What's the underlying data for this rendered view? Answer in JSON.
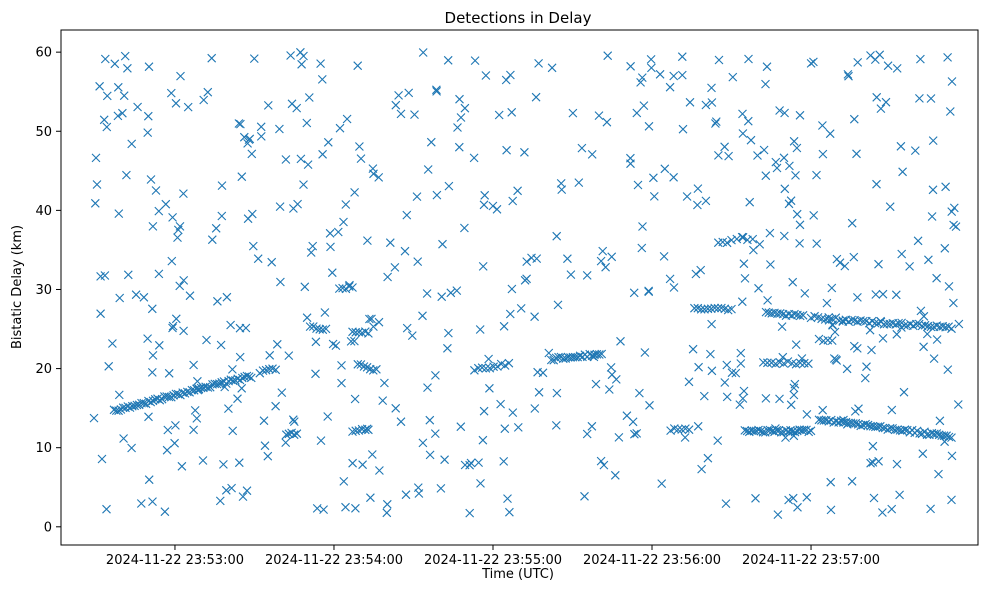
{
  "chart_data": {
    "type": "scatter",
    "title": "Detections in Delay",
    "xlabel": "Time (UTC)",
    "ylabel": "Bistatic Delay (km)",
    "marker": "x",
    "color": "#1f77b4",
    "x_unit": "seconds since 2024-11-22 23:52:00",
    "xlim": [
      17,
      363
    ],
    "ylim": [
      -2.3,
      62.8
    ],
    "xticks": [
      {
        "value": 60,
        "label": "2024-11-22 23:53:00"
      },
      {
        "value": 120,
        "label": "2024-11-22 23:54:00"
      },
      {
        "value": 180,
        "label": "2024-11-22 23:55:00"
      },
      {
        "value": 240,
        "label": "2024-11-22 23:56:00"
      },
      {
        "value": 300,
        "label": "2024-11-22 23:57:00"
      }
    ],
    "yticks": [
      0,
      10,
      20,
      30,
      40,
      50,
      60
    ],
    "grid": false,
    "tracks": [
      {
        "t_start": 37,
        "t_end": 88,
        "d_start": 14.7,
        "d_end": 19.0,
        "count": 60
      },
      {
        "t_start": 92,
        "t_end": 98,
        "d_start": 19.5,
        "d_end": 20.0,
        "count": 6
      },
      {
        "t_start": 102,
        "t_end": 106,
        "d_start": 11.8,
        "d_end": 11.8,
        "count": 5
      },
      {
        "t_start": 111,
        "t_end": 117,
        "d_start": 25.2,
        "d_end": 25.0,
        "count": 6
      },
      {
        "t_start": 122,
        "t_end": 127,
        "d_start": 30.2,
        "d_end": 30.3,
        "count": 5
      },
      {
        "t_start": 127,
        "t_end": 133,
        "d_start": 24.8,
        "d_end": 24.5,
        "count": 6
      },
      {
        "t_start": 129,
        "t_end": 136,
        "d_start": 20.6,
        "d_end": 19.8,
        "count": 7
      },
      {
        "t_start": 127,
        "t_end": 133,
        "d_start": 12.2,
        "d_end": 12.3,
        "count": 6
      },
      {
        "t_start": 173,
        "t_end": 186,
        "d_start": 19.9,
        "d_end": 20.6,
        "count": 10
      },
      {
        "t_start": 202,
        "t_end": 221,
        "d_start": 21.2,
        "d_end": 21.8,
        "count": 22
      },
      {
        "t_start": 247,
        "t_end": 254,
        "d_start": 12.3,
        "d_end": 12.4,
        "count": 6
      },
      {
        "t_start": 256,
        "t_end": 270,
        "d_start": 27.7,
        "d_end": 27.5,
        "count": 12
      },
      {
        "t_start": 265,
        "t_end": 270,
        "d_start": 35.9,
        "d_end": 36.1,
        "count": 4
      },
      {
        "t_start": 272,
        "t_end": 278,
        "d_start": 36.5,
        "d_end": 36.4,
        "count": 4
      },
      {
        "t_start": 283,
        "t_end": 297,
        "d_start": 27.0,
        "d_end": 26.7,
        "count": 14
      },
      {
        "t_start": 282,
        "t_end": 299,
        "d_start": 20.8,
        "d_end": 20.7,
        "count": 12
      },
      {
        "t_start": 275,
        "t_end": 300,
        "d_start": 12.1,
        "d_end": 12.1,
        "count": 30
      },
      {
        "t_start": 300,
        "t_end": 312,
        "d_start": 26.5,
        "d_end": 26.2,
        "count": 10
      },
      {
        "t_start": 303,
        "t_end": 308,
        "d_start": 23.6,
        "d_end": 23.5,
        "count": 4
      },
      {
        "t_start": 303,
        "t_end": 353,
        "d_start": 13.6,
        "d_end": 11.4,
        "count": 55
      },
      {
        "t_start": 312,
        "t_end": 353,
        "d_start": 26.1,
        "d_end": 25.2,
        "count": 38
      }
    ],
    "noise_points": {
      "count": 600,
      "t_range": [
        29,
        356
      ],
      "delay_range": [
        1.5,
        60.0
      ]
    }
  }
}
